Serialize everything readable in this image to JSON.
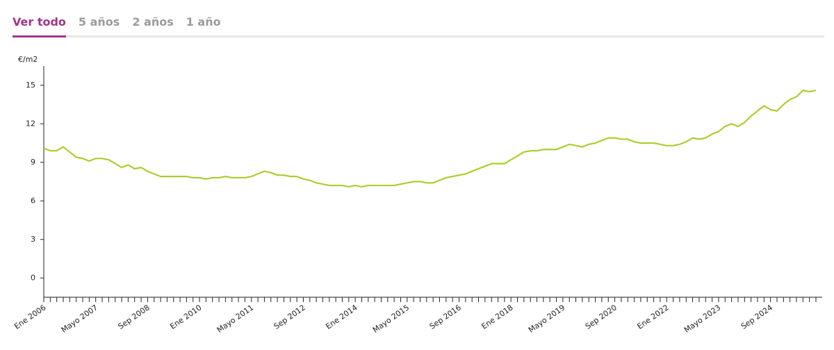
{
  "tabs": [
    "Ver todo",
    "5 años",
    "2 años",
    "1 año"
  ],
  "chart_data": {
    "type": "line",
    "y_label": "€/m2",
    "color": "#a9cf2e",
    "ylim": [
      -1.5,
      16.5
    ],
    "yticks": [
      0,
      3,
      6,
      9,
      12,
      15
    ],
    "categories": [
      "Ene 2006",
      null,
      null,
      null,
      null,
      null,
      null,
      null,
      "Mayo 2007",
      null,
      null,
      null,
      null,
      null,
      null,
      null,
      "Sep 2008",
      null,
      null,
      null,
      null,
      null,
      null,
      null,
      "Ene 2010",
      null,
      null,
      null,
      null,
      null,
      null,
      null,
      "Mayo 2011",
      null,
      null,
      null,
      null,
      null,
      null,
      null,
      "Sep 2012",
      null,
      null,
      null,
      null,
      null,
      null,
      null,
      "Ene 2014",
      null,
      null,
      null,
      null,
      null,
      null,
      null,
      "Mayo 2015",
      null,
      null,
      null,
      null,
      null,
      null,
      null,
      "Sep 2016",
      null,
      null,
      null,
      null,
      null,
      null,
      null,
      "Ene 2018",
      null,
      null,
      null,
      null,
      null,
      null,
      null,
      "Mayo 2019",
      null,
      null,
      null,
      null,
      null,
      null,
      null,
      "Sep 2020",
      null,
      null,
      null,
      null,
      null,
      null,
      null,
      "Ene 2022",
      null,
      null,
      null,
      null,
      null,
      null,
      null,
      "Mayo 2023",
      null,
      null,
      null,
      null,
      null,
      null,
      null,
      "Sep 2024",
      null,
      null,
      null,
      null,
      null,
      null,
      null
    ],
    "values": [
      10.1,
      9.9,
      9.9,
      10.2,
      9.8,
      9.4,
      9.3,
      9.1,
      9.3,
      9.3,
      9.2,
      8.9,
      8.6,
      8.8,
      8.5,
      8.6,
      8.3,
      8.1,
      7.9,
      7.9,
      7.9,
      7.9,
      7.9,
      7.8,
      7.8,
      7.7,
      7.8,
      7.8,
      7.9,
      7.8,
      7.8,
      7.8,
      7.9,
      8.1,
      8.3,
      8.2,
      8.0,
      8.0,
      7.9,
      7.9,
      7.7,
      7.6,
      7.4,
      7.3,
      7.2,
      7.2,
      7.2,
      7.1,
      7.2,
      7.1,
      7.2,
      7.2,
      7.2,
      7.2,
      7.2,
      7.3,
      7.4,
      7.5,
      7.5,
      7.4,
      7.4,
      7.6,
      7.8,
      7.9,
      8.0,
      8.1,
      8.3,
      8.5,
      8.7,
      8.9,
      8.9,
      8.9,
      9.2,
      9.5,
      9.8,
      9.9,
      9.9,
      10.0,
      10.0,
      10.0,
      10.2,
      10.4,
      10.3,
      10.2,
      10.4,
      10.5,
      10.7,
      10.9,
      10.9,
      10.8,
      10.8,
      10.6,
      10.5,
      10.5,
      10.5,
      10.4,
      10.3,
      10.3,
      10.4,
      10.6,
      10.9,
      10.8,
      10.9,
      11.2,
      11.4,
      11.8,
      12.0,
      11.8,
      12.1,
      12.6,
      13.0,
      13.4,
      13.1,
      13.0,
      13.5,
      13.9,
      14.1,
      14.6,
      14.5,
      14.6
    ]
  }
}
